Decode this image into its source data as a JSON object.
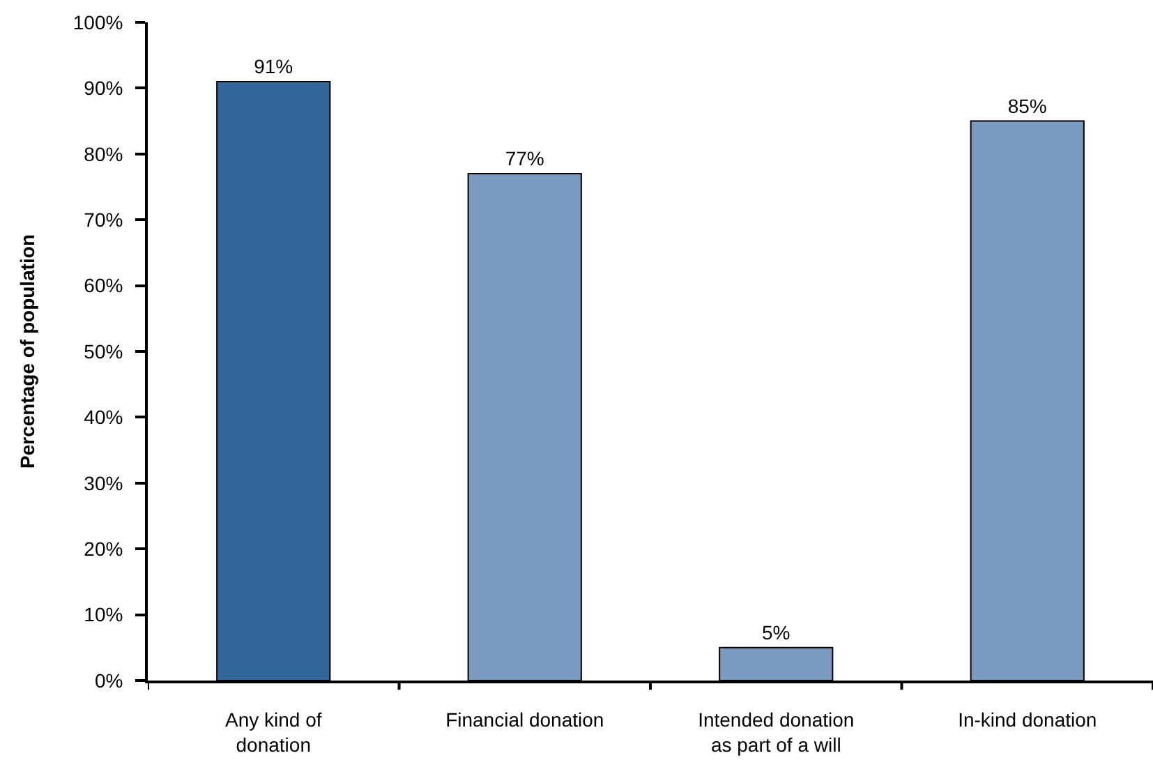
{
  "chart_data": {
    "type": "bar",
    "ylabel": "Percentage of population",
    "categories": [
      "Any kind of\ndonation",
      "Financial donation",
      "Intended donation\nas part of a will",
      "In-kind donation"
    ],
    "values": [
      91,
      77,
      5,
      85
    ],
    "colors": [
      "#336699",
      "#7b9cc0",
      "#7b9cc0",
      "#7b9cc0"
    ],
    "value_labels": [
      "91%",
      "77%",
      "5%",
      "85%"
    ],
    "ylim": [
      0,
      100
    ],
    "yticks": [
      {
        "value": 0,
        "label": "0%"
      },
      {
        "value": 10,
        "label": "10%"
      },
      {
        "value": 20,
        "label": "20%"
      },
      {
        "value": 30,
        "label": "30%"
      },
      {
        "value": 40,
        "label": "40%"
      },
      {
        "value": 50,
        "label": "50%"
      },
      {
        "value": 60,
        "label": "60%"
      },
      {
        "value": 70,
        "label": "70%"
      },
      {
        "value": 80,
        "label": "80%"
      },
      {
        "value": 90,
        "label": "90%"
      },
      {
        "value": 100,
        "label": "100%"
      }
    ],
    "grid": false
  }
}
